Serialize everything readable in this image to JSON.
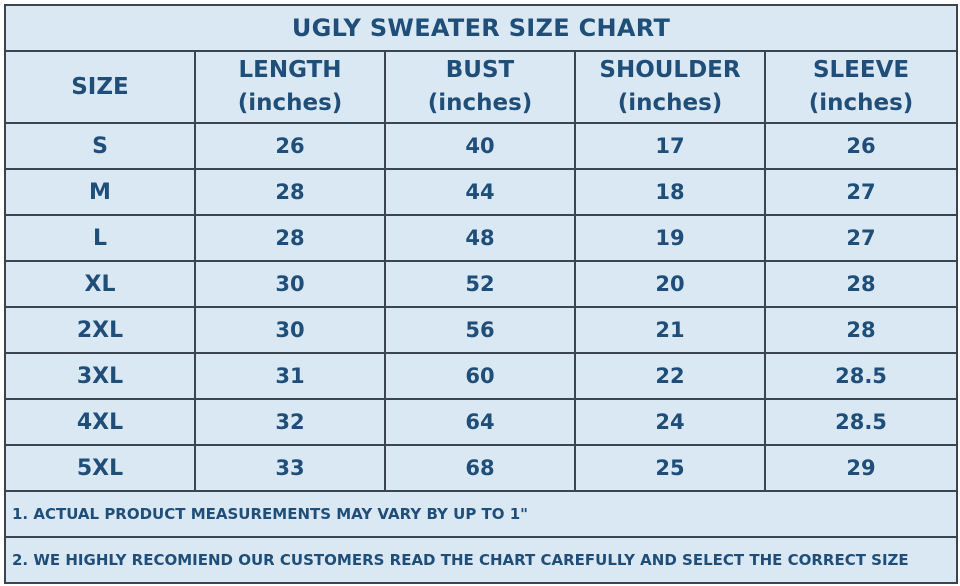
{
  "title": "UGLY SWEATER SIZE CHART",
  "headers": [
    {
      "name": "SIZE",
      "unit": ""
    },
    {
      "name": "LENGTH",
      "unit": "(inches)"
    },
    {
      "name": "BUST",
      "unit": "(inches)"
    },
    {
      "name": "SHOULDER",
      "unit": "(inches)"
    },
    {
      "name": "SLEEVE",
      "unit": "(inches)"
    }
  ],
  "rows": [
    [
      "S",
      "26",
      "40",
      "17",
      "26"
    ],
    [
      "M",
      "28",
      "44",
      "18",
      "27"
    ],
    [
      "L",
      "28",
      "48",
      "19",
      "27"
    ],
    [
      "XL",
      "30",
      "52",
      "20",
      "28"
    ],
    [
      "2XL",
      "30",
      "56",
      "21",
      "28"
    ],
    [
      "3XL",
      "31",
      "60",
      "22",
      "28.5"
    ],
    [
      "4XL",
      "32",
      "64",
      "24",
      "28.5"
    ],
    [
      "5XL",
      "33",
      "68",
      "25",
      "29"
    ]
  ],
  "notes": [
    "1. ACTUAL PRODUCT MEASUREMENTS MAY VARY BY UP TO 1\"",
    "2. WE HIGHLY RECOMIEND OUR CUSTOMERS READ THE CHART CAREFULLY AND SELECT THE CORRECT SIZE"
  ],
  "colors": {
    "background": "#dae8f4",
    "text": "#1f4e79",
    "border": "#3a4550"
  }
}
